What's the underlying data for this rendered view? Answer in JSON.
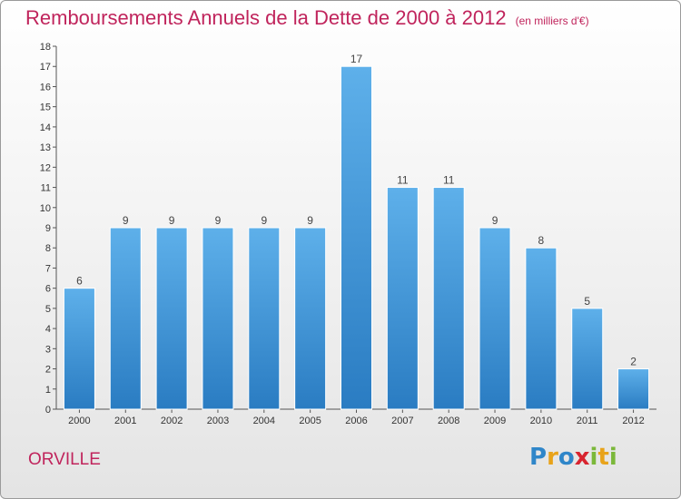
{
  "title": "Remboursements Annuels de la Dette de 2000 à 2012",
  "subtitle": "(en milliers d'€)",
  "commune": "ORVILLE",
  "logo": {
    "letters": [
      "P",
      "r",
      "o",
      "x",
      "i",
      "t",
      "i"
    ],
    "colors": [
      "#2f86c9",
      "#e8a31a",
      "#2f86c9",
      "#d8242f",
      "#7bb83a",
      "#e8a31a",
      "#7bb83a"
    ]
  },
  "colors": {
    "bar_top": "#5eb0ea",
    "bar_bottom": "#2a7cc2",
    "title": "#c0245c"
  },
  "chart_data": {
    "type": "bar",
    "title": "Remboursements Annuels de la Dette de 2000 à 2012",
    "subtitle": "(en milliers d'€)",
    "categories": [
      "2000",
      "2001",
      "2002",
      "2003",
      "2004",
      "2005",
      "2006",
      "2007",
      "2008",
      "2009",
      "2010",
      "2011",
      "2012"
    ],
    "values": [
      6,
      9,
      9,
      9,
      9,
      9,
      17,
      11,
      11,
      9,
      8,
      5,
      2
    ],
    "ylim": [
      0,
      18
    ],
    "yticks": [
      "0",
      "1",
      "2",
      "3",
      "4",
      "5",
      "6",
      "7",
      "8",
      "9",
      "10",
      "11",
      "12",
      "13",
      "14",
      "15",
      "16",
      "17",
      "18"
    ],
    "grid": false,
    "legend": "none"
  }
}
